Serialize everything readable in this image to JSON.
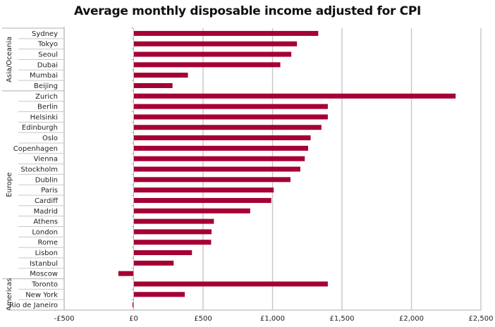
{
  "chart_data": {
    "type": "bar",
    "orientation": "horizontal",
    "title": "Average monthly disposable income adjusted for CPI",
    "xlabel": "",
    "ylabel": "",
    "xlim": [
      -500,
      2500
    ],
    "x_ticks": [
      -500,
      0,
      500,
      1000,
      1500,
      2000,
      2500
    ],
    "x_tick_labels": [
      "-£500",
      "£0",
      "£500",
      "£1,000",
      "£1,500",
      "£2,000",
      "£2,500"
    ],
    "grid": true,
    "legend": "none",
    "bar_color": "#A50034",
    "groups": [
      {
        "name": "Asia/Oceania",
        "categories": [
          "Sydney",
          "Tokyo",
          "Seoul",
          "Dubai",
          "Mumbai",
          "Beijing"
        ],
        "values": [
          1329,
          1176,
          1135,
          1056,
          391,
          280
        ]
      },
      {
        "name": "Europe",
        "categories": [
          "Zurich",
          "Berlin",
          "Helsinki",
          "Edinburgh",
          "Oslo",
          "Copenhagen",
          "Vienna",
          "Stockholm",
          "Dublin",
          "Paris",
          "Cardiff",
          "Madrid",
          "Athens",
          "London",
          "Rome",
          "Lisbon",
          "Istanbul",
          "Moscow"
        ],
        "values": [
          2318,
          1398,
          1398,
          1352,
          1274,
          1256,
          1232,
          1200,
          1129,
          1008,
          991,
          839,
          578,
          561,
          558,
          420,
          288,
          -110
        ]
      },
      {
        "name": "Americas",
        "categories": [
          "Toronto",
          "New York",
          "Rio de Janeiro"
        ],
        "values": [
          1398,
          368,
          -8
        ]
      }
    ]
  }
}
